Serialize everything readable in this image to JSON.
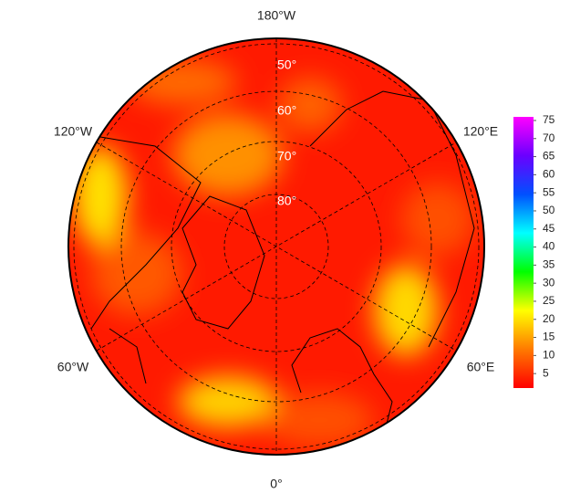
{
  "map": {
    "longitude_labels": [
      "180°W",
      "120°E",
      "60°E",
      "0°",
      "60°W",
      "120°W"
    ],
    "latitude_labels": [
      "50°",
      "60°",
      "70°",
      "80°"
    ]
  },
  "colorbar": {
    "range": [
      1,
      76
    ],
    "ticks": [
      5,
      10,
      15,
      20,
      25,
      30,
      35,
      40,
      45,
      50,
      55,
      60,
      65,
      70,
      75
    ],
    "colors": [
      "#ff0000",
      "#ff7a00",
      "#ffff00",
      "#00ff00",
      "#00ffff",
      "#0050ff",
      "#6a00ff",
      "#ff00ff"
    ]
  }
}
